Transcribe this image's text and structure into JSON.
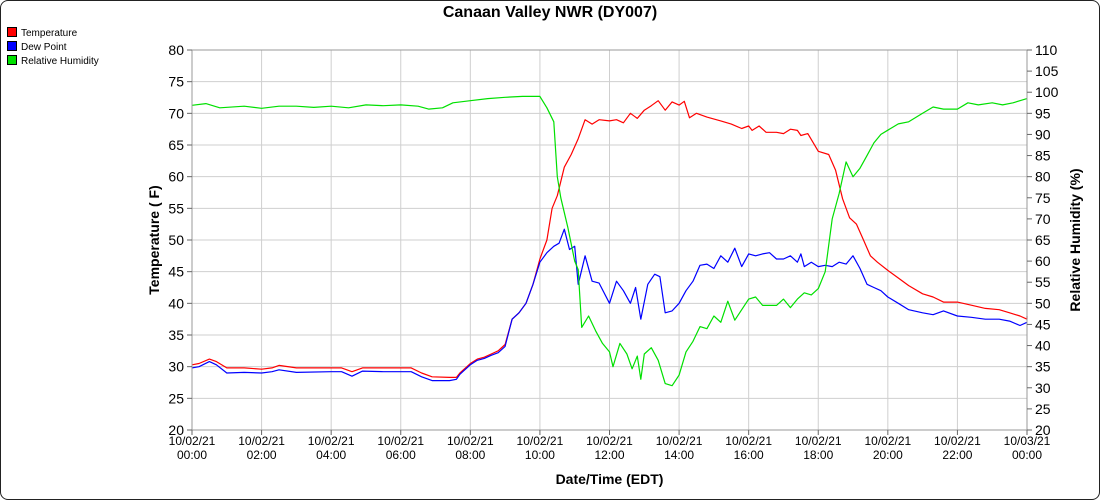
{
  "chart_data": {
    "type": "line",
    "title": "Canaan Valley NWR (DY007)",
    "xlabel": "Date/Time (EDT)",
    "ylabel_left": "Temperature ( F)",
    "ylabel_right": "Relative Humidity (%)",
    "ylim_left": [
      20,
      80
    ],
    "ylim_right": [
      20,
      110
    ],
    "yticks_left": [
      "20",
      "25",
      "30",
      "35",
      "40",
      "45",
      "50",
      "55",
      "60",
      "65",
      "70",
      "75",
      "80"
    ],
    "yticks_right": [
      "20",
      "25",
      "30",
      "35",
      "40",
      "45",
      "50",
      "55",
      "60",
      "65",
      "70",
      "75",
      "80",
      "85",
      "90",
      "95",
      "100",
      "105",
      "110"
    ],
    "xlim_hours": [
      0,
      24
    ],
    "xticks": [
      {
        "date": "10/02/21",
        "time": "00:00"
      },
      {
        "date": "10/02/21",
        "time": "02:00"
      },
      {
        "date": "10/02/21",
        "time": "04:00"
      },
      {
        "date": "10/02/21",
        "time": "06:00"
      },
      {
        "date": "10/02/21",
        "time": "08:00"
      },
      {
        "date": "10/02/21",
        "time": "10:00"
      },
      {
        "date": "10/02/21",
        "time": "12:00"
      },
      {
        "date": "10/02/21",
        "time": "14:00"
      },
      {
        "date": "10/02/21",
        "time": "16:00"
      },
      {
        "date": "10/02/21",
        "time": "18:00"
      },
      {
        "date": "10/02/21",
        "time": "20:00"
      },
      {
        "date": "10/02/21",
        "time": "22:00"
      },
      {
        "date": "10/03/21",
        "time": "00:00"
      }
    ],
    "grid": true,
    "legend_position": "top-left",
    "series": [
      {
        "name": "Temperature",
        "color": "#ff0000",
        "axis": "left",
        "points": [
          [
            0,
            30.3
          ],
          [
            0.2,
            30.5
          ],
          [
            0.5,
            31.2
          ],
          [
            0.7,
            30.8
          ],
          [
            1.0,
            29.8
          ],
          [
            1.5,
            29.8
          ],
          [
            2.0,
            29.6
          ],
          [
            2.3,
            29.8
          ],
          [
            2.5,
            30.2
          ],
          [
            3.0,
            29.8
          ],
          [
            4.0,
            29.8
          ],
          [
            4.3,
            29.8
          ],
          [
            4.6,
            29.2
          ],
          [
            4.9,
            29.8
          ],
          [
            5.5,
            29.8
          ],
          [
            6.0,
            29.8
          ],
          [
            6.3,
            29.8
          ],
          [
            6.6,
            29.0
          ],
          [
            6.9,
            28.4
          ],
          [
            7.4,
            28.3
          ],
          [
            7.6,
            28.3
          ],
          [
            7.7,
            29.0
          ],
          [
            7.8,
            29.5
          ],
          [
            7.9,
            30.0
          ],
          [
            8.0,
            30.5
          ],
          [
            8.2,
            31.2
          ],
          [
            8.4,
            31.5
          ],
          [
            8.6,
            32.0
          ],
          [
            8.8,
            32.5
          ],
          [
            9.0,
            33.5
          ],
          [
            9.2,
            37.5
          ],
          [
            9.4,
            38.5
          ],
          [
            9.6,
            40.0
          ],
          [
            9.8,
            43.0
          ],
          [
            10.0,
            47.0
          ],
          [
            10.2,
            50.0
          ],
          [
            10.35,
            55.0
          ],
          [
            10.5,
            57.0
          ],
          [
            10.7,
            61.5
          ],
          [
            10.9,
            63.5
          ],
          [
            11.1,
            66.0
          ],
          [
            11.3,
            69.0
          ],
          [
            11.5,
            68.3
          ],
          [
            11.7,
            69.0
          ],
          [
            12.0,
            68.8
          ],
          [
            12.2,
            69.0
          ],
          [
            12.4,
            68.5
          ],
          [
            12.6,
            70.0
          ],
          [
            12.8,
            69.2
          ],
          [
            13.0,
            70.5
          ],
          [
            13.2,
            71.2
          ],
          [
            13.4,
            72.0
          ],
          [
            13.6,
            70.5
          ],
          [
            13.8,
            71.8
          ],
          [
            14.0,
            71.3
          ],
          [
            14.15,
            71.9
          ],
          [
            14.3,
            69.3
          ],
          [
            14.5,
            70.0
          ],
          [
            14.8,
            69.4
          ],
          [
            15.2,
            68.8
          ],
          [
            15.5,
            68.3
          ],
          [
            15.8,
            67.6
          ],
          [
            16.0,
            68.0
          ],
          [
            16.1,
            67.3
          ],
          [
            16.3,
            68.0
          ],
          [
            16.5,
            67.0
          ],
          [
            16.8,
            67.0
          ],
          [
            17.0,
            66.8
          ],
          [
            17.2,
            67.5
          ],
          [
            17.4,
            67.3
          ],
          [
            17.5,
            66.5
          ],
          [
            17.7,
            66.8
          ],
          [
            18.0,
            64.0
          ],
          [
            18.3,
            63.5
          ],
          [
            18.5,
            61.0
          ],
          [
            18.7,
            56.5
          ],
          [
            18.9,
            53.5
          ],
          [
            19.1,
            52.5
          ],
          [
            19.3,
            50.0
          ],
          [
            19.5,
            47.5
          ],
          [
            19.7,
            46.5
          ],
          [
            20.0,
            45.2
          ],
          [
            20.3,
            44.0
          ],
          [
            20.6,
            42.8
          ],
          [
            21.0,
            41.5
          ],
          [
            21.3,
            41.0
          ],
          [
            21.6,
            40.2
          ],
          [
            22.0,
            40.2
          ],
          [
            22.4,
            39.7
          ],
          [
            22.8,
            39.2
          ],
          [
            23.2,
            39.0
          ],
          [
            23.5,
            38.5
          ],
          [
            23.8,
            38.0
          ],
          [
            24.0,
            37.5
          ],
          [
            24.0,
            38.0
          ]
        ]
      },
      {
        "name": "Dew Point",
        "color": "#0000ff",
        "axis": "left",
        "points": [
          [
            0,
            29.8
          ],
          [
            0.2,
            30.0
          ],
          [
            0.5,
            30.8
          ],
          [
            0.7,
            30.3
          ],
          [
            1.0,
            29.0
          ],
          [
            1.5,
            29.1
          ],
          [
            2.0,
            29.0
          ],
          [
            2.3,
            29.2
          ],
          [
            2.5,
            29.5
          ],
          [
            3.0,
            29.1
          ],
          [
            4.0,
            29.2
          ],
          [
            4.3,
            29.2
          ],
          [
            4.6,
            28.5
          ],
          [
            4.9,
            29.3
          ],
          [
            5.5,
            29.2
          ],
          [
            6.0,
            29.2
          ],
          [
            6.3,
            29.2
          ],
          [
            6.6,
            28.4
          ],
          [
            6.9,
            27.8
          ],
          [
            7.4,
            27.8
          ],
          [
            7.6,
            28.0
          ],
          [
            7.7,
            28.8
          ],
          [
            7.8,
            29.3
          ],
          [
            7.9,
            29.8
          ],
          [
            8.0,
            30.3
          ],
          [
            8.2,
            31.0
          ],
          [
            8.4,
            31.3
          ],
          [
            8.6,
            31.8
          ],
          [
            8.8,
            32.2
          ],
          [
            9.0,
            33.2
          ],
          [
            9.2,
            37.5
          ],
          [
            9.4,
            38.5
          ],
          [
            9.6,
            40.0
          ],
          [
            9.8,
            43.0
          ],
          [
            10.0,
            46.5
          ],
          [
            10.2,
            48.0
          ],
          [
            10.4,
            49.0
          ],
          [
            10.55,
            49.5
          ],
          [
            10.7,
            51.7
          ],
          [
            10.85,
            48.5
          ],
          [
            11.0,
            49.0
          ],
          [
            11.1,
            43.0
          ],
          [
            11.3,
            47.5
          ],
          [
            11.5,
            43.5
          ],
          [
            11.7,
            43.2
          ],
          [
            12.0,
            40.0
          ],
          [
            12.2,
            43.5
          ],
          [
            12.4,
            42.0
          ],
          [
            12.6,
            40.0
          ],
          [
            12.75,
            42.5
          ],
          [
            12.9,
            37.5
          ],
          [
            13.1,
            43.0
          ],
          [
            13.3,
            44.6
          ],
          [
            13.45,
            44.2
          ],
          [
            13.6,
            38.5
          ],
          [
            13.8,
            38.8
          ],
          [
            14.0,
            40.0
          ],
          [
            14.2,
            42.0
          ],
          [
            14.4,
            43.5
          ],
          [
            14.6,
            46.0
          ],
          [
            14.8,
            46.2
          ],
          [
            15.0,
            45.5
          ],
          [
            15.2,
            47.5
          ],
          [
            15.4,
            46.5
          ],
          [
            15.6,
            48.7
          ],
          [
            15.8,
            45.8
          ],
          [
            16.0,
            47.8
          ],
          [
            16.2,
            47.5
          ],
          [
            16.4,
            47.8
          ],
          [
            16.6,
            48.0
          ],
          [
            16.8,
            47.0
          ],
          [
            17.0,
            47.0
          ],
          [
            17.2,
            47.5
          ],
          [
            17.4,
            46.5
          ],
          [
            17.5,
            47.8
          ],
          [
            17.6,
            45.8
          ],
          [
            17.8,
            46.5
          ],
          [
            18.0,
            45.8
          ],
          [
            18.2,
            46.0
          ],
          [
            18.4,
            45.8
          ],
          [
            18.6,
            46.5
          ],
          [
            18.8,
            46.2
          ],
          [
            19.0,
            47.5
          ],
          [
            19.2,
            45.5
          ],
          [
            19.4,
            43.0
          ],
          [
            19.6,
            42.5
          ],
          [
            19.8,
            42.0
          ],
          [
            20.0,
            41.0
          ],
          [
            20.3,
            40.0
          ],
          [
            20.6,
            39.0
          ],
          [
            21.0,
            38.5
          ],
          [
            21.3,
            38.2
          ],
          [
            21.6,
            38.8
          ],
          [
            22.0,
            38.0
          ],
          [
            22.4,
            37.8
          ],
          [
            22.8,
            37.5
          ],
          [
            23.2,
            37.5
          ],
          [
            23.5,
            37.2
          ],
          [
            23.8,
            36.5
          ],
          [
            24.0,
            37.0
          ]
        ]
      },
      {
        "name": "Relative Humidity",
        "color": "#00e000",
        "axis": "right",
        "points": [
          [
            0,
            96.9
          ],
          [
            0.4,
            97.3
          ],
          [
            0.8,
            96.3
          ],
          [
            1.5,
            96.7
          ],
          [
            2.0,
            96.2
          ],
          [
            2.5,
            96.7
          ],
          [
            3.0,
            96.7
          ],
          [
            3.5,
            96.4
          ],
          [
            4.0,
            96.7
          ],
          [
            4.5,
            96.3
          ],
          [
            5.0,
            97.0
          ],
          [
            5.5,
            96.8
          ],
          [
            6.0,
            97.0
          ],
          [
            6.5,
            96.7
          ],
          [
            6.8,
            96.0
          ],
          [
            7.2,
            96.3
          ],
          [
            7.5,
            97.5
          ],
          [
            8.0,
            98.0
          ],
          [
            8.5,
            98.5
          ],
          [
            9.0,
            98.8
          ],
          [
            9.5,
            99.0
          ],
          [
            10.0,
            99.0
          ],
          [
            10.2,
            96.3
          ],
          [
            10.4,
            93.0
          ],
          [
            10.5,
            80.0
          ],
          [
            10.6,
            75.0
          ],
          [
            10.8,
            68.0
          ],
          [
            11.0,
            60.0
          ],
          [
            11.1,
            58.0
          ],
          [
            11.2,
            44.3
          ],
          [
            11.4,
            47.0
          ],
          [
            11.6,
            43.5
          ],
          [
            11.8,
            40.5
          ],
          [
            12.0,
            38.5
          ],
          [
            12.1,
            35.0
          ],
          [
            12.3,
            40.5
          ],
          [
            12.5,
            38.0
          ],
          [
            12.65,
            34.5
          ],
          [
            12.8,
            37.5
          ],
          [
            12.9,
            32.0
          ],
          [
            13.0,
            38.0
          ],
          [
            13.2,
            39.5
          ],
          [
            13.4,
            36.5
          ],
          [
            13.6,
            31.0
          ],
          [
            13.8,
            30.5
          ],
          [
            14.0,
            33.0
          ],
          [
            14.2,
            38.5
          ],
          [
            14.4,
            41.0
          ],
          [
            14.6,
            44.5
          ],
          [
            14.8,
            44.0
          ],
          [
            15.0,
            47.0
          ],
          [
            15.2,
            45.5
          ],
          [
            15.4,
            50.5
          ],
          [
            15.6,
            46.0
          ],
          [
            15.8,
            48.5
          ],
          [
            16.0,
            51.0
          ],
          [
            16.2,
            51.5
          ],
          [
            16.4,
            49.5
          ],
          [
            16.8,
            49.5
          ],
          [
            17.0,
            51.0
          ],
          [
            17.2,
            49.0
          ],
          [
            17.4,
            51.0
          ],
          [
            17.6,
            52.5
          ],
          [
            17.8,
            52.0
          ],
          [
            18.0,
            53.5
          ],
          [
            18.2,
            57.5
          ],
          [
            18.4,
            70.0
          ],
          [
            18.6,
            76.0
          ],
          [
            18.8,
            83.5
          ],
          [
            19.0,
            80.0
          ],
          [
            19.2,
            82.0
          ],
          [
            19.4,
            85.0
          ],
          [
            19.6,
            88.0
          ],
          [
            19.8,
            90.0
          ],
          [
            20.0,
            91.0
          ],
          [
            20.3,
            92.5
          ],
          [
            20.6,
            93.0
          ],
          [
            21.0,
            95.0
          ],
          [
            21.3,
            96.5
          ],
          [
            21.6,
            96.0
          ],
          [
            22.0,
            96.0
          ],
          [
            22.3,
            97.5
          ],
          [
            22.6,
            97.0
          ],
          [
            23.0,
            97.5
          ],
          [
            23.3,
            97.0
          ],
          [
            23.6,
            97.5
          ],
          [
            24.0,
            98.5
          ]
        ]
      }
    ]
  }
}
